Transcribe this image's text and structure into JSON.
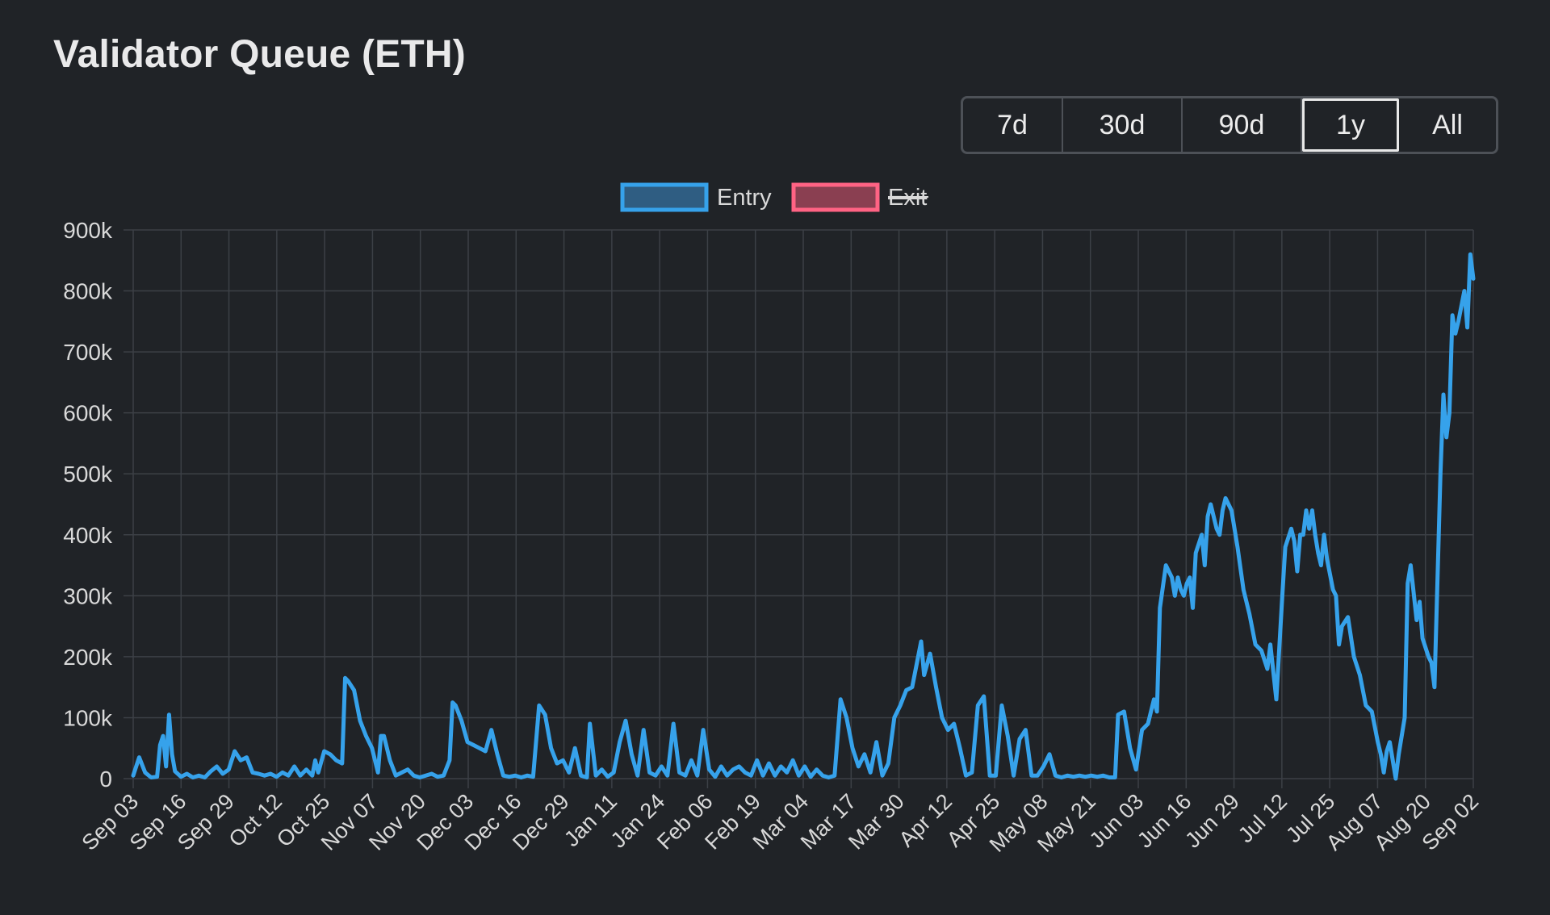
{
  "title": "Validator Queue (ETH)",
  "ranges": [
    {
      "label": "7d",
      "active": false
    },
    {
      "label": "30d",
      "active": false
    },
    {
      "label": "90d",
      "active": false
    },
    {
      "label": "1y",
      "active": true
    },
    {
      "label": "All",
      "active": false
    }
  ],
  "colors": {
    "entry": "#36a2eb",
    "exit": "#ff6384",
    "grid": "#3c4046",
    "text": "#d9d9d9"
  },
  "chart_data": {
    "type": "line",
    "x_tick_labels": [
      "Sep 03",
      "Sep 16",
      "Sep 29",
      "Oct 12",
      "Oct 25",
      "Nov 07",
      "Nov 20",
      "Dec 03",
      "Dec 16",
      "Dec 29",
      "Jan 11",
      "Jan 24",
      "Feb 06",
      "Feb 19",
      "Mar 04",
      "Mar 17",
      "Mar 30",
      "Apr 12",
      "Apr 25",
      "May 08",
      "May 21",
      "Jun 03",
      "Jun 16",
      "Jun 29",
      "Jul 12",
      "Jul 25",
      "Aug 07",
      "Aug 20",
      "Sep 02"
    ],
    "y_tick_labels": [
      "0",
      "100k",
      "200k",
      "300k",
      "400k",
      "500k",
      "600k",
      "700k",
      "800k",
      "900k"
    ],
    "ylim": [
      0,
      900000
    ],
    "grid": true,
    "legend_position": "top",
    "series": [
      {
        "name": "Entry",
        "visible": true,
        "points": [
          [
            0,
            5000
          ],
          [
            2,
            35000
          ],
          [
            4,
            10000
          ],
          [
            6,
            2000
          ],
          [
            8,
            3000
          ],
          [
            9,
            55000
          ],
          [
            10,
            70000
          ],
          [
            11,
            20000
          ],
          [
            12,
            105000
          ],
          [
            13,
            40000
          ],
          [
            14,
            12000
          ],
          [
            16,
            3000
          ],
          [
            18,
            8000
          ],
          [
            20,
            2000
          ],
          [
            22,
            5000
          ],
          [
            24,
            2000
          ],
          [
            26,
            12000
          ],
          [
            28,
            20000
          ],
          [
            30,
            8000
          ],
          [
            32,
            15000
          ],
          [
            34,
            45000
          ],
          [
            36,
            30000
          ],
          [
            38,
            35000
          ],
          [
            40,
            10000
          ],
          [
            42,
            8000
          ],
          [
            44,
            5000
          ],
          [
            46,
            8000
          ],
          [
            48,
            3000
          ],
          [
            50,
            10000
          ],
          [
            52,
            5000
          ],
          [
            54,
            20000
          ],
          [
            56,
            5000
          ],
          [
            58,
            15000
          ],
          [
            60,
            5000
          ],
          [
            61,
            30000
          ],
          [
            62,
            10000
          ],
          [
            64,
            45000
          ],
          [
            66,
            40000
          ],
          [
            68,
            30000
          ],
          [
            70,
            25000
          ],
          [
            71,
            165000
          ],
          [
            72,
            160000
          ],
          [
            74,
            145000
          ],
          [
            76,
            95000
          ],
          [
            78,
            70000
          ],
          [
            80,
            50000
          ],
          [
            82,
            10000
          ],
          [
            83,
            70000
          ],
          [
            84,
            70000
          ],
          [
            86,
            30000
          ],
          [
            88,
            5000
          ],
          [
            90,
            10000
          ],
          [
            92,
            15000
          ],
          [
            94,
            5000
          ],
          [
            96,
            2000
          ],
          [
            98,
            5000
          ],
          [
            100,
            8000
          ],
          [
            102,
            3000
          ],
          [
            104,
            5000
          ],
          [
            106,
            30000
          ],
          [
            107,
            125000
          ],
          [
            108,
            120000
          ],
          [
            110,
            95000
          ],
          [
            112,
            60000
          ],
          [
            114,
            55000
          ],
          [
            116,
            50000
          ],
          [
            118,
            45000
          ],
          [
            120,
            80000
          ],
          [
            122,
            40000
          ],
          [
            124,
            5000
          ],
          [
            126,
            3000
          ],
          [
            128,
            5000
          ],
          [
            130,
            2000
          ],
          [
            132,
            5000
          ],
          [
            134,
            3000
          ],
          [
            136,
            120000
          ],
          [
            138,
            105000
          ],
          [
            140,
            50000
          ],
          [
            142,
            25000
          ],
          [
            144,
            30000
          ],
          [
            146,
            10000
          ],
          [
            148,
            50000
          ],
          [
            150,
            5000
          ],
          [
            152,
            2000
          ],
          [
            153,
            90000
          ],
          [
            155,
            5000
          ],
          [
            157,
            15000
          ],
          [
            159,
            3000
          ],
          [
            161,
            10000
          ],
          [
            163,
            60000
          ],
          [
            165,
            95000
          ],
          [
            167,
            40000
          ],
          [
            169,
            5000
          ],
          [
            171,
            80000
          ],
          [
            173,
            10000
          ],
          [
            175,
            5000
          ],
          [
            177,
            20000
          ],
          [
            179,
            5000
          ],
          [
            181,
            90000
          ],
          [
            183,
            10000
          ],
          [
            185,
            5000
          ],
          [
            187,
            30000
          ],
          [
            189,
            5000
          ],
          [
            191,
            80000
          ],
          [
            193,
            15000
          ],
          [
            195,
            3000
          ],
          [
            197,
            20000
          ],
          [
            199,
            5000
          ],
          [
            201,
            15000
          ],
          [
            203,
            20000
          ],
          [
            205,
            10000
          ],
          [
            207,
            5000
          ],
          [
            209,
            30000
          ],
          [
            211,
            5000
          ],
          [
            213,
            25000
          ],
          [
            215,
            5000
          ],
          [
            217,
            20000
          ],
          [
            219,
            10000
          ],
          [
            221,
            30000
          ],
          [
            223,
            5000
          ],
          [
            225,
            20000
          ],
          [
            227,
            3000
          ],
          [
            229,
            15000
          ],
          [
            231,
            5000
          ],
          [
            233,
            2000
          ],
          [
            235,
            5000
          ],
          [
            237,
            130000
          ],
          [
            239,
            100000
          ],
          [
            241,
            50000
          ],
          [
            243,
            20000
          ],
          [
            245,
            40000
          ],
          [
            247,
            10000
          ],
          [
            249,
            60000
          ],
          [
            251,
            5000
          ],
          [
            253,
            25000
          ],
          [
            255,
            100000
          ],
          [
            257,
            120000
          ],
          [
            259,
            145000
          ],
          [
            261,
            150000
          ],
          [
            263,
            200000
          ],
          [
            264,
            225000
          ],
          [
            265,
            170000
          ],
          [
            267,
            205000
          ],
          [
            269,
            150000
          ],
          [
            271,
            100000
          ],
          [
            273,
            80000
          ],
          [
            275,
            90000
          ],
          [
            277,
            50000
          ],
          [
            279,
            5000
          ],
          [
            281,
            10000
          ],
          [
            283,
            120000
          ],
          [
            285,
            135000
          ],
          [
            287,
            5000
          ],
          [
            289,
            5000
          ],
          [
            291,
            120000
          ],
          [
            293,
            70000
          ],
          [
            295,
            5000
          ],
          [
            297,
            65000
          ],
          [
            299,
            80000
          ],
          [
            301,
            5000
          ],
          [
            303,
            5000
          ],
          [
            305,
            20000
          ],
          [
            307,
            40000
          ],
          [
            309,
            5000
          ],
          [
            311,
            2000
          ],
          [
            313,
            5000
          ],
          [
            315,
            3000
          ],
          [
            317,
            5000
          ],
          [
            319,
            3000
          ],
          [
            321,
            5000
          ],
          [
            323,
            3000
          ],
          [
            325,
            5000
          ],
          [
            327,
            2000
          ],
          [
            329,
            2000
          ],
          [
            330,
            105000
          ],
          [
            332,
            110000
          ],
          [
            334,
            50000
          ],
          [
            336,
            15000
          ],
          [
            338,
            80000
          ],
          [
            340,
            90000
          ],
          [
            342,
            130000
          ],
          [
            343,
            110000
          ],
          [
            344,
            280000
          ],
          [
            346,
            350000
          ],
          [
            348,
            330000
          ],
          [
            349,
            300000
          ],
          [
            350,
            330000
          ],
          [
            351,
            310000
          ],
          [
            352,
            300000
          ],
          [
            353,
            320000
          ],
          [
            354,
            330000
          ],
          [
            355,
            280000
          ],
          [
            356,
            370000
          ],
          [
            358,
            400000
          ],
          [
            359,
            350000
          ],
          [
            360,
            430000
          ],
          [
            361,
            450000
          ],
          [
            363,
            410000
          ],
          [
            364,
            400000
          ],
          [
            365,
            440000
          ],
          [
            366,
            460000
          ],
          [
            368,
            440000
          ],
          [
            370,
            380000
          ],
          [
            372,
            310000
          ],
          [
            374,
            270000
          ],
          [
            376,
            220000
          ],
          [
            378,
            210000
          ],
          [
            380,
            180000
          ],
          [
            381,
            220000
          ],
          [
            383,
            130000
          ],
          [
            385,
            300000
          ],
          [
            386,
            380000
          ],
          [
            388,
            410000
          ],
          [
            389,
            390000
          ],
          [
            390,
            340000
          ],
          [
            391,
            400000
          ],
          [
            392,
            400000
          ],
          [
            393,
            440000
          ],
          [
            394,
            410000
          ],
          [
            395,
            440000
          ],
          [
            396,
            400000
          ],
          [
            397,
            370000
          ],
          [
            398,
            350000
          ],
          [
            399,
            400000
          ],
          [
            400,
            360000
          ],
          [
            402,
            310000
          ],
          [
            403,
            300000
          ],
          [
            404,
            220000
          ],
          [
            405,
            250000
          ],
          [
            407,
            265000
          ],
          [
            409,
            200000
          ],
          [
            411,
            170000
          ],
          [
            413,
            120000
          ],
          [
            415,
            110000
          ],
          [
            417,
            60000
          ],
          [
            418,
            40000
          ],
          [
            419,
            10000
          ],
          [
            420,
            45000
          ],
          [
            421,
            60000
          ],
          [
            422,
            30000
          ],
          [
            423,
            0
          ],
          [
            424,
            40000
          ],
          [
            426,
            100000
          ],
          [
            427,
            320000
          ],
          [
            428,
            350000
          ],
          [
            430,
            260000
          ],
          [
            431,
            290000
          ],
          [
            432,
            230000
          ],
          [
            434,
            200000
          ],
          [
            435,
            190000
          ],
          [
            436,
            150000
          ],
          [
            438,
            500000
          ],
          [
            439,
            630000
          ],
          [
            440,
            560000
          ],
          [
            441,
            600000
          ],
          [
            442,
            760000
          ],
          [
            443,
            730000
          ],
          [
            444,
            750000
          ],
          [
            446,
            800000
          ],
          [
            447,
            740000
          ],
          [
            448,
            860000
          ],
          [
            449,
            820000
          ]
        ]
      },
      {
        "name": "Exit",
        "visible": false,
        "points": []
      }
    ]
  }
}
